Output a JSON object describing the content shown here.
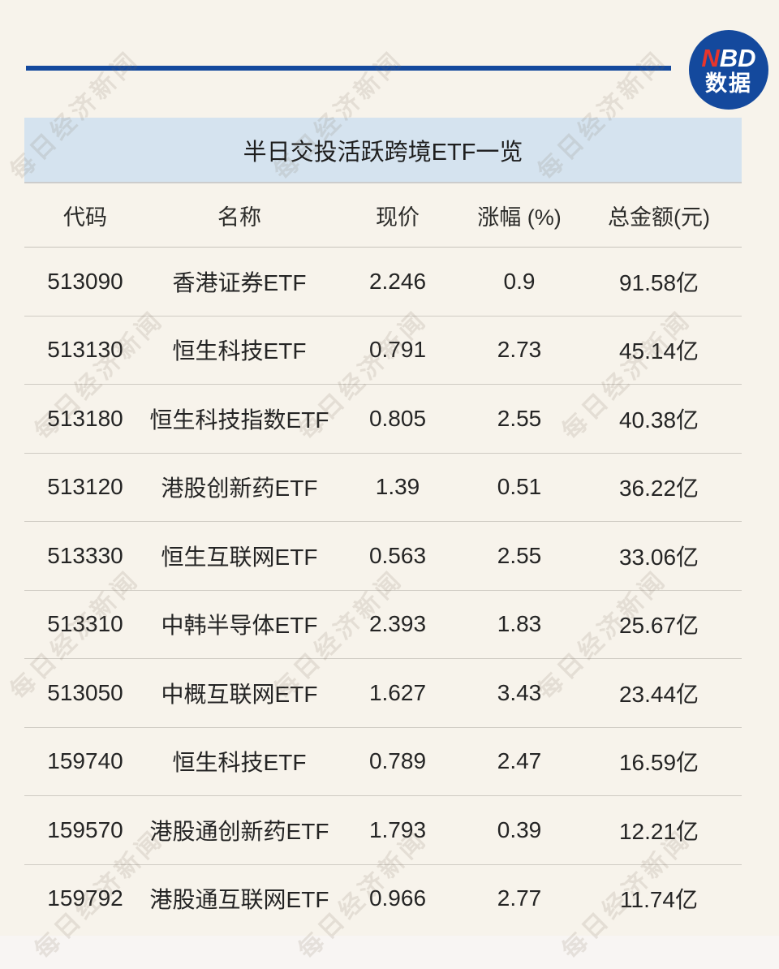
{
  "logo": {
    "brand_first_letter": "N",
    "brand_rest": "BD",
    "subtitle": "数据"
  },
  "watermark": {
    "text": "每日经济新闻"
  },
  "colors": {
    "accent_blue": "#14499d",
    "logo_red": "#e8352c",
    "title_bar_bg": "#d5e3ef",
    "page_bg": "#f7f3eb",
    "footer_bg": "#f8f5f3"
  },
  "chart_data": {
    "type": "table",
    "title": "半日交投活跃跨境ETF一览",
    "columns": [
      "代码",
      "名称",
      "现价",
      "涨幅 (%)",
      "总金额(元)"
    ],
    "column_keys": [
      "code",
      "name",
      "price",
      "change-pct",
      "total-amount"
    ],
    "rows": [
      [
        "513090",
        "香港证券ETF",
        "2.246",
        "0.9",
        "91.58亿"
      ],
      [
        "513130",
        "恒生科技ETF",
        "0.791",
        "2.73",
        "45.14亿"
      ],
      [
        "513180",
        "恒生科技指数ETF",
        "0.805",
        "2.55",
        "40.38亿"
      ],
      [
        "513120",
        "港股创新药ETF",
        "1.39",
        "0.51",
        "36.22亿"
      ],
      [
        "513330",
        "恒生互联网ETF",
        "0.563",
        "2.55",
        "33.06亿"
      ],
      [
        "513310",
        "中韩半导体ETF",
        "2.393",
        "1.83",
        "25.67亿"
      ],
      [
        "513050",
        "中概互联网ETF",
        "1.627",
        "3.43",
        "23.44亿"
      ],
      [
        "159740",
        "恒生科技ETF",
        "0.789",
        "2.47",
        "16.59亿"
      ],
      [
        "159570",
        "港股通创新药ETF",
        "1.793",
        "0.39",
        "12.21亿"
      ],
      [
        "159792",
        "港股通互联网ETF",
        "0.966",
        "2.77",
        "11.74亿"
      ]
    ]
  }
}
